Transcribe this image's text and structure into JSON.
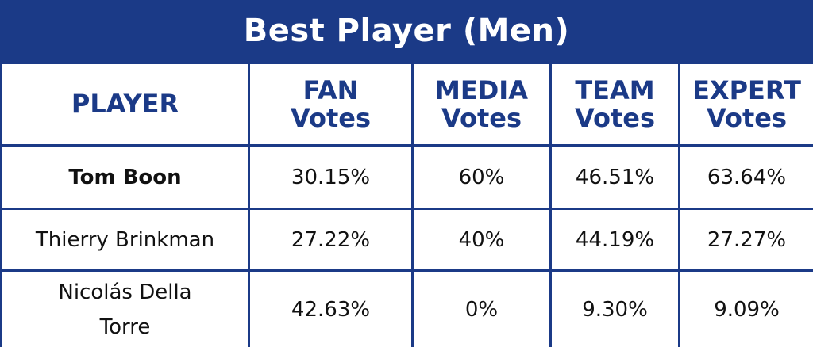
{
  "title": "Best Player (Men)",
  "colors": {
    "header_blue": "#1b3a87",
    "text_dark": "#111111",
    "background": "#ffffff"
  },
  "table": {
    "columns": [
      {
        "line1": "PLAYER",
        "line2": ""
      },
      {
        "line1": "FAN",
        "line2": "Votes"
      },
      {
        "line1": "MEDIA",
        "line2": "Votes"
      },
      {
        "line1": "TEAM",
        "line2": "Votes"
      },
      {
        "line1": "EXPERT",
        "line2": "Votes"
      }
    ],
    "rows": [
      {
        "player": "Tom Boon",
        "fan": "30.15%",
        "media": "60%",
        "team": "46.51%",
        "expert": "63.64%"
      },
      {
        "player": "Thierry Brinkman",
        "fan": "27.22%",
        "media": "40%",
        "team": "44.19%",
        "expert": "27.27%"
      },
      {
        "player": "Nicolás Della Torre",
        "fan": "42.63%",
        "media": "0%",
        "team": "9.30%",
        "expert": "9.09%"
      }
    ]
  }
}
